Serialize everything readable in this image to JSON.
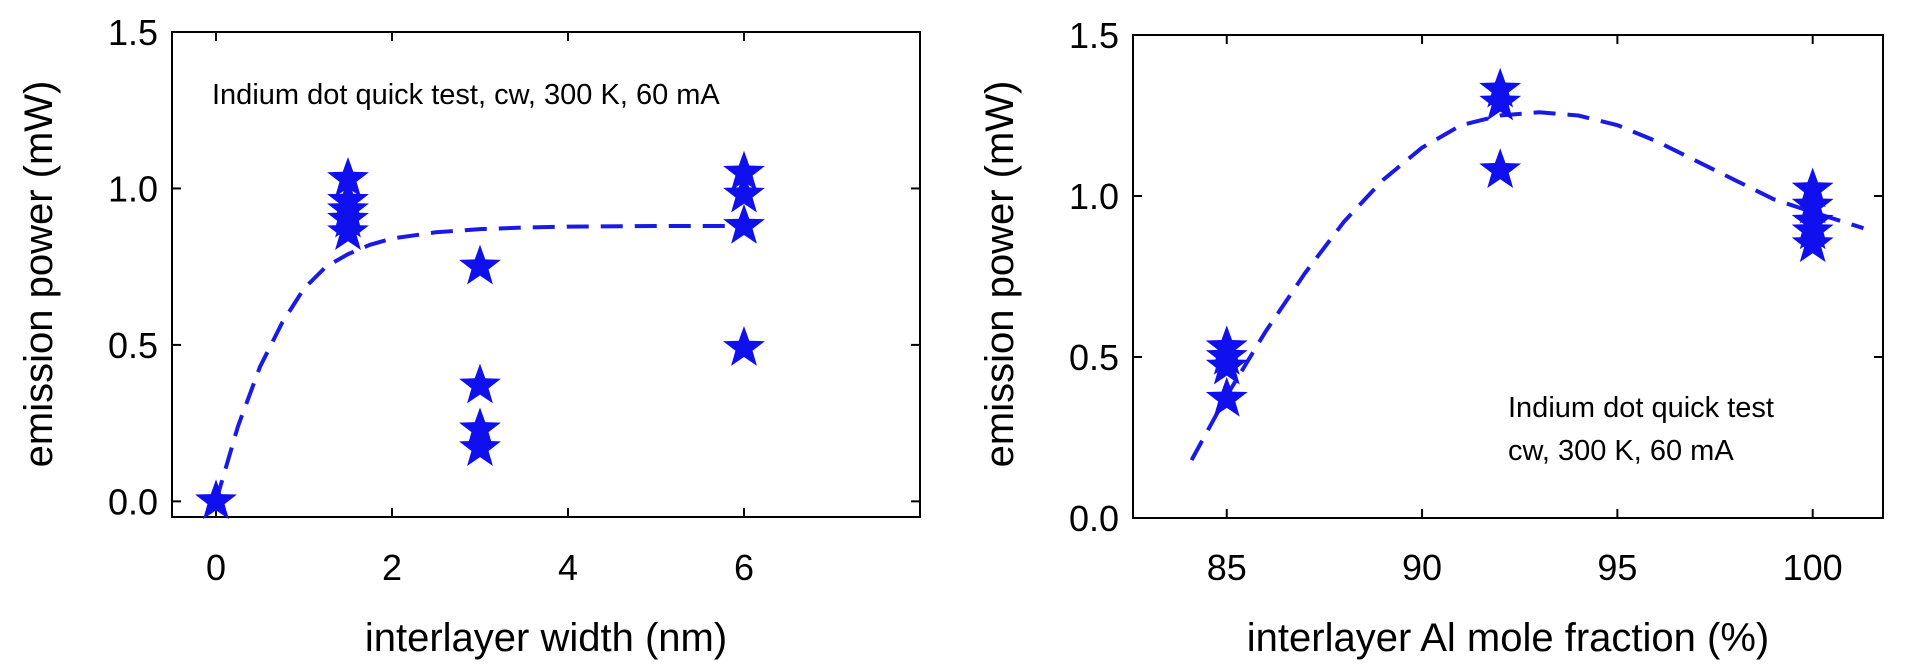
{
  "colors": {
    "marker": "#1010ee",
    "fit": "#1a1ae6",
    "axis": "#000000"
  },
  "chart_data": [
    {
      "type": "scatter",
      "title": "",
      "xlabel": "interlayer width (nm)",
      "ylabel": "emission power (mW)",
      "xlim": [
        -0.5,
        8.0
      ],
      "ylim": [
        -0.05,
        1.5
      ],
      "xticks": [
        0,
        2,
        4,
        6
      ],
      "xtick_labels": [
        "0",
        "2",
        "4",
        "6"
      ],
      "yticks": [
        0.0,
        0.5,
        1.0,
        1.5
      ],
      "ytick_labels": [
        "0.0",
        "0.5",
        "1.0",
        "1.5"
      ],
      "grid": false,
      "annotation": [
        "Indium dot quick test, cw, 300 K, 60 mA"
      ],
      "series": [
        {
          "x": [
            0,
            1.5,
            1.5,
            1.5,
            1.5,
            1.5,
            3,
            3,
            3,
            3,
            6,
            6,
            6,
            6
          ],
          "y": [
            0.0,
            1.03,
            0.96,
            0.93,
            0.9,
            0.86,
            0.75,
            0.37,
            0.23,
            0.17,
            1.05,
            0.98,
            0.88,
            0.49
          ],
          "marker": "star"
        }
      ],
      "fit": {
        "style": "dashed",
        "x": [
          0,
          0.25,
          0.5,
          0.75,
          1.0,
          1.25,
          1.5,
          1.75,
          2.0,
          2.5,
          3.0,
          3.5,
          4.0,
          5.0,
          6.0
        ],
        "y": [
          0.0,
          0.24,
          0.43,
          0.57,
          0.68,
          0.75,
          0.79,
          0.82,
          0.84,
          0.86,
          0.87,
          0.875,
          0.878,
          0.88,
          0.88
        ]
      }
    },
    {
      "type": "scatter",
      "title": "",
      "xlabel": "interlayer Al mole fraction (%)",
      "ylabel": "emission power (mW)",
      "xlim": [
        82.6,
        101.8
      ],
      "ylim": [
        0.0,
        1.5
      ],
      "xticks": [
        85,
        90,
        95,
        100
      ],
      "xtick_labels": [
        "85",
        "90",
        "95",
        "100"
      ],
      "yticks": [
        0.0,
        0.5,
        1.0,
        1.5
      ],
      "ytick_labels": [
        "0.0",
        "0.5",
        "1.0",
        "1.5"
      ],
      "grid": false,
      "annotation": [
        "Indium dot quick test",
        "cw, 300 K, 60 mA"
      ],
      "series": [
        {
          "x": [
            85,
            85,
            85,
            85,
            92,
            92,
            92,
            100,
            100,
            100,
            100,
            100
          ],
          "y": [
            0.53,
            0.5,
            0.47,
            0.37,
            1.33,
            1.29,
            1.08,
            1.02,
            0.97,
            0.92,
            0.89,
            0.85
          ],
          "marker": "star"
        }
      ],
      "fit": {
        "style": "dashed",
        "x": [
          84.1,
          85,
          86,
          87,
          88,
          89,
          90,
          91,
          92,
          93,
          94,
          95,
          96,
          97,
          98,
          99,
          100,
          101.3
        ],
        "y": [
          0.18,
          0.38,
          0.58,
          0.76,
          0.92,
          1.05,
          1.15,
          1.22,
          1.25,
          1.26,
          1.25,
          1.22,
          1.17,
          1.11,
          1.05,
          0.99,
          0.95,
          0.9
        ]
      }
    }
  ]
}
